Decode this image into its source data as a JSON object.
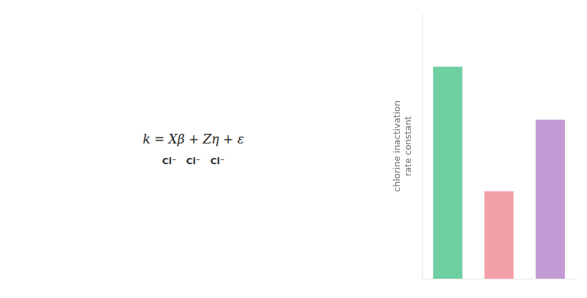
{
  "chart_data": {
    "type": "bar",
    "categories": [
      null,
      null,
      null
    ],
    "values": [
      0.8,
      0.33,
      0.6
    ],
    "colors": [
      "#6ECFA0",
      "#F4A0A8",
      "#C49AD4"
    ],
    "ylabel": "chlorine inactivation\nrate constant",
    "ylim": [
      0,
      1.0
    ],
    "grid": false,
    "tick_labels": false,
    "annotations": [
      "k = Xβ + Zη + ε",
      "Cl⁻",
      "Cl⁻",
      "Cl⁻"
    ]
  }
}
